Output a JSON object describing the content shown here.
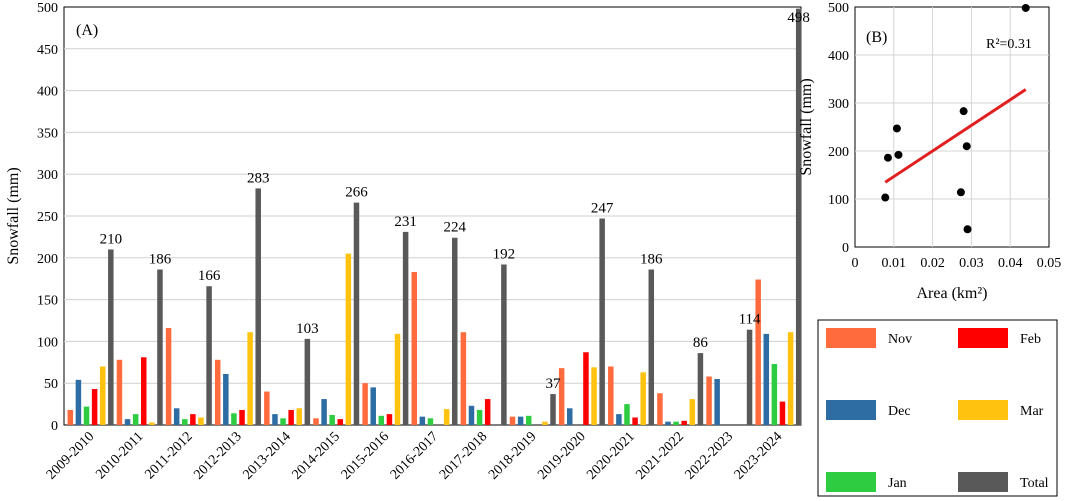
{
  "chart_data": [
    {
      "type": "bar",
      "panel_label": "(A)",
      "ylabel": "Snowfall (mm)",
      "ylim": [
        0,
        500
      ],
      "yticks": [
        0,
        50,
        100,
        150,
        200,
        250,
        300,
        350,
        400,
        450,
        500
      ],
      "grid": true,
      "categories": [
        "2009-2010",
        "2010-2011",
        "2011-2012",
        "2012-2013",
        "2013-2014",
        "2014-2015",
        "2015-2016",
        "2016-2017",
        "2017-2018",
        "2018-2019",
        "2019-2020",
        "2020-2021",
        "2021-2022",
        "2022-2023",
        "2023-2024"
      ],
      "series": [
        {
          "name": "Nov",
          "color": "#FF6B3D",
          "values": [
            18,
            78,
            116,
            78,
            40,
            8,
            50,
            183,
            111,
            10,
            68,
            70,
            38,
            58,
            174
          ]
        },
        {
          "name": "Dec",
          "color": "#2E6DA4",
          "values": [
            54,
            7,
            20,
            61,
            13,
            31,
            45,
            10,
            23,
            10,
            20,
            13,
            4,
            55,
            109
          ]
        },
        {
          "name": "Jan",
          "color": "#2ECC40",
          "values": [
            22,
            13,
            7,
            14,
            8,
            12,
            11,
            8,
            18,
            11,
            0,
            25,
            4,
            0,
            73
          ]
        },
        {
          "name": "Feb",
          "color": "#FF0000",
          "values": [
            43,
            81,
            13,
            18,
            18,
            7,
            13,
            0,
            31,
            0,
            87,
            9,
            5,
            0,
            28
          ]
        },
        {
          "name": "Mar",
          "color": "#FFC20E",
          "values": [
            70,
            3,
            9,
            111,
            20,
            205,
            109,
            19,
            0,
            4,
            69,
            63,
            31,
            0,
            111
          ]
        },
        {
          "name": "Total",
          "color": "#595959",
          "values": [
            210,
            186,
            166,
            283,
            103,
            266,
            231,
            224,
            192,
            37,
            247,
            186,
            86,
            114,
            498
          ]
        }
      ],
      "data_labels": [
        "210",
        "186",
        "166",
        "283",
        "103",
        "266",
        "231",
        "224",
        "192",
        "37",
        "247",
        "186",
        "86",
        "114",
        "498"
      ]
    },
    {
      "type": "scatter",
      "panel_label": "(B)",
      "xlabel": "Area (km²)",
      "ylabel": "Snowfall (mm)",
      "xlim": [
        0,
        0.05
      ],
      "ylim": [
        0,
        500
      ],
      "xticks": [
        "0",
        "0.01",
        "0.02",
        "0.03",
        "0.04",
        "0.05"
      ],
      "yticks": [
        "0",
        "100",
        "200",
        "300",
        "400",
        "500"
      ],
      "annotation": "R²=0.31",
      "points": [
        {
          "x": 0.0078,
          "y": 103
        },
        {
          "x": 0.0085,
          "y": 186
        },
        {
          "x": 0.0108,
          "y": 247
        },
        {
          "x": 0.0112,
          "y": 192
        },
        {
          "x": 0.0273,
          "y": 114
        },
        {
          "x": 0.028,
          "y": 283
        },
        {
          "x": 0.0288,
          "y": 210
        },
        {
          "x": 0.029,
          "y": 37
        },
        {
          "x": 0.044,
          "y": 498
        }
      ],
      "trendline": {
        "x": [
          0.0078,
          0.044
        ],
        "y": [
          135,
          328
        ],
        "color": "#E02020"
      }
    }
  ],
  "legend": {
    "entries": [
      {
        "label": "Nov",
        "color": "#FF6B3D"
      },
      {
        "label": "Feb",
        "color": "#FF0000"
      },
      {
        "label": "Dec",
        "color": "#2E6DA4"
      },
      {
        "label": "Mar",
        "color": "#FFC20E"
      },
      {
        "label": "Jan",
        "color": "#2ECC40"
      },
      {
        "label": "Total",
        "color": "#595959"
      }
    ]
  }
}
